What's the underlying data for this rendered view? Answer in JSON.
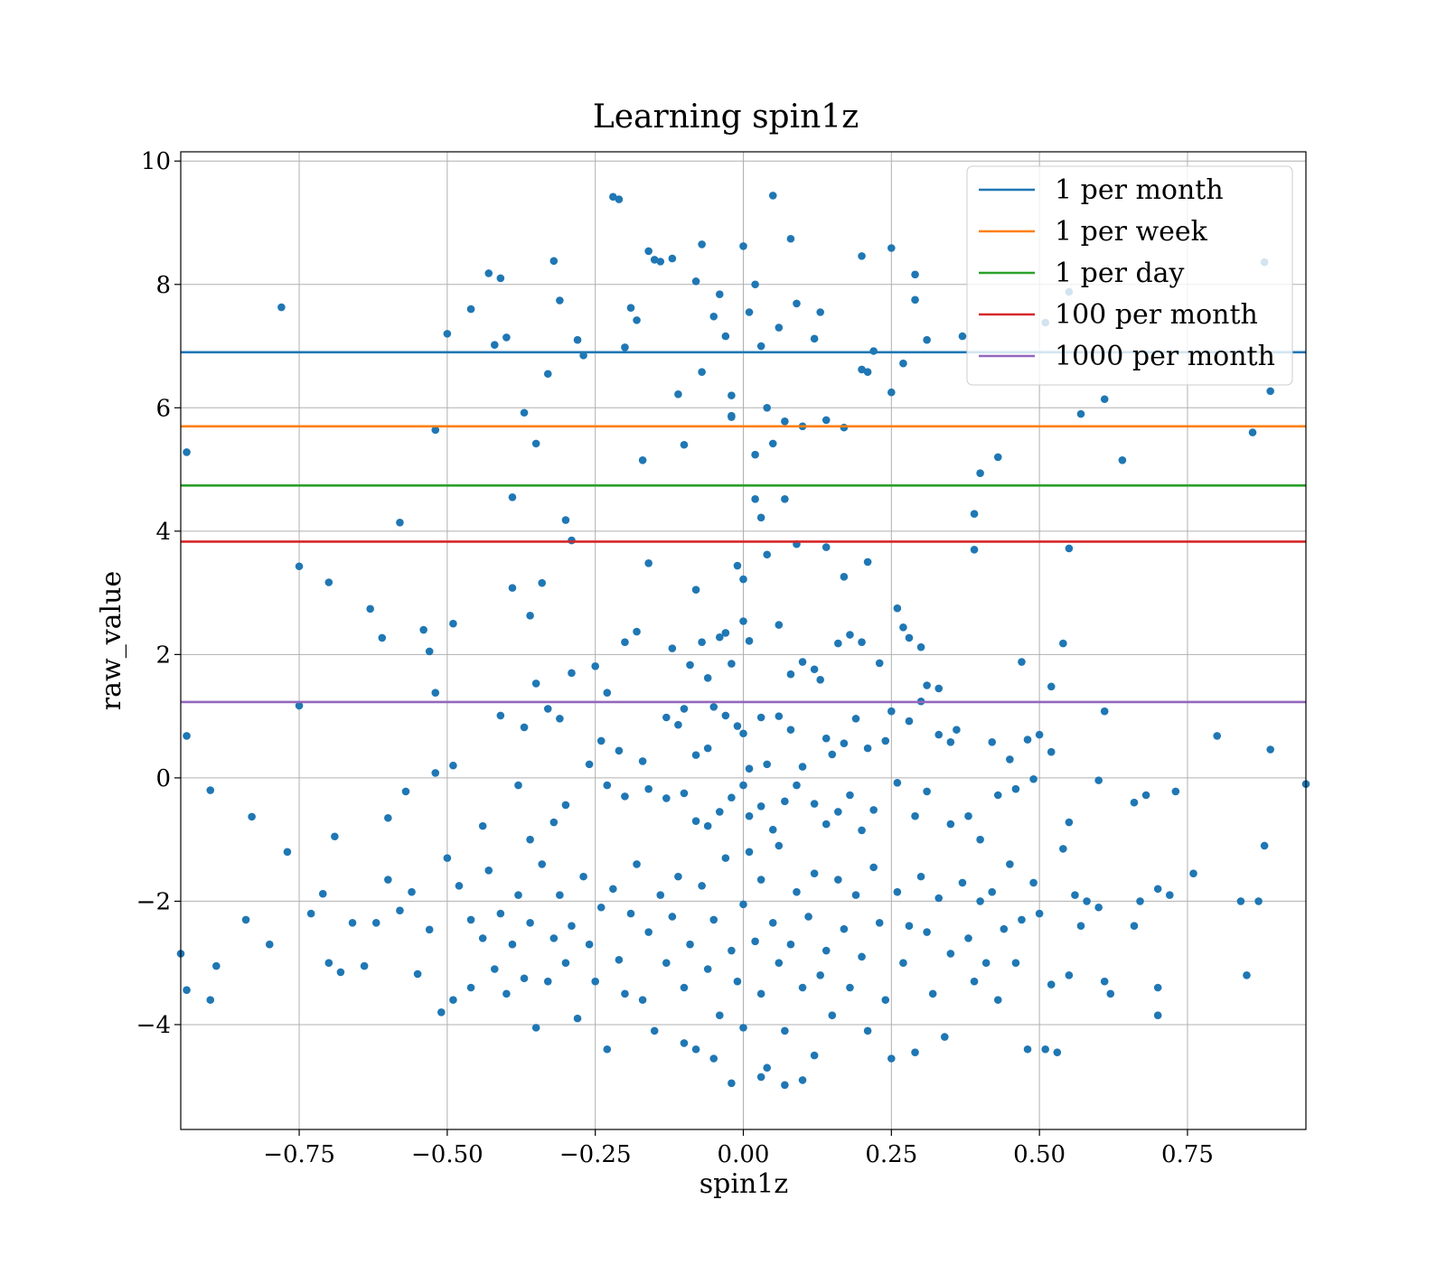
{
  "chart_data": {
    "type": "scatter",
    "title": "Learning spin1z",
    "xlabel": "spin1z",
    "ylabel": "raw_value",
    "xlim": [
      -0.95,
      0.95
    ],
    "ylim": [
      -5.7,
      10.15
    ],
    "xticks": [
      -0.75,
      -0.5,
      -0.25,
      0.0,
      0.25,
      0.5,
      0.75
    ],
    "xtick_labels": [
      "−0.75",
      "−0.50",
      "−0.25",
      "0.00",
      "0.25",
      "0.50",
      "0.75"
    ],
    "yticks": [
      -4,
      -2,
      0,
      2,
      4,
      6,
      8,
      10
    ],
    "ytick_labels": [
      "−4",
      "−2",
      "0",
      "2",
      "4",
      "6",
      "8",
      "10"
    ],
    "grid": true,
    "legend_position": "top-right",
    "point_color": "#1f77b4",
    "thresholds": [
      {
        "name": "1 per month",
        "y": 6.9,
        "color": "#1f77b4"
      },
      {
        "name": "1 per week",
        "y": 5.7,
        "color": "#ff7f0e"
      },
      {
        "name": "1 per day",
        "y": 4.74,
        "color": "#2ca02c"
      },
      {
        "name": "100 per month",
        "y": 3.83,
        "color": "#d62728"
      },
      {
        "name": "1000 per month",
        "y": 1.23,
        "color": "#9467bd"
      }
    ],
    "points": [
      [
        -0.94,
        5.28
      ],
      [
        -0.78,
        7.63
      ],
      [
        -0.75,
        3.43
      ],
      [
        -0.7,
        3.17
      ],
      [
        -0.63,
        2.74
      ],
      [
        -0.61,
        2.27
      ],
      [
        -0.58,
        4.14
      ],
      [
        -0.54,
        2.4
      ],
      [
        -0.53,
        2.05
      ],
      [
        -0.52,
        1.38
      ],
      [
        -0.5,
        7.2
      ],
      [
        -0.49,
        2.5
      ],
      [
        -0.46,
        7.6
      ],
      [
        -0.43,
        8.18
      ],
      [
        -0.42,
        7.02
      ],
      [
        -0.41,
        8.1
      ],
      [
        -0.4,
        7.14
      ],
      [
        -0.39,
        4.55
      ],
      [
        -0.39,
        3.08
      ],
      [
        -0.37,
        5.92
      ],
      [
        -0.35,
        5.42
      ],
      [
        -0.34,
        3.16
      ],
      [
        -0.33,
        6.55
      ],
      [
        -0.32,
        8.38
      ],
      [
        -0.31,
        7.74
      ],
      [
        -0.3,
        4.18
      ],
      [
        -0.29,
        3.85
      ],
      [
        -0.29,
        1.7
      ],
      [
        -0.28,
        7.1
      ],
      [
        -0.27,
        6.85
      ],
      [
        -0.22,
        9.42
      ],
      [
        -0.21,
        9.38
      ],
      [
        -0.2,
        6.98
      ],
      [
        -0.19,
        7.62
      ],
      [
        -0.18,
        7.42
      ],
      [
        -0.17,
        5.15
      ],
      [
        -0.16,
        3.48
      ],
      [
        -0.16,
        8.54
      ],
      [
        -0.15,
        8.4
      ],
      [
        -0.14,
        8.37
      ],
      [
        -0.12,
        8.42
      ],
      [
        -0.11,
        6.22
      ],
      [
        -0.1,
        5.4
      ],
      [
        -0.08,
        8.05
      ],
      [
        -0.07,
        8.65
      ],
      [
        -0.07,
        6.58
      ],
      [
        -0.05,
        7.48
      ],
      [
        -0.04,
        7.84
      ],
      [
        -0.03,
        7.16
      ],
      [
        -0.02,
        6.2
      ],
      [
        -0.02,
        5.87
      ],
      [
        -0.02,
        5.85
      ],
      [
        0.0,
        8.62
      ],
      [
        0.01,
        7.55
      ],
      [
        0.02,
        8.0
      ],
      [
        0.03,
        7.0
      ],
      [
        0.04,
        6.0
      ],
      [
        0.05,
        9.44
      ],
      [
        0.06,
        7.3
      ],
      [
        0.07,
        5.78
      ],
      [
        0.08,
        8.74
      ],
      [
        0.09,
        7.69
      ],
      [
        0.1,
        5.7
      ],
      [
        0.12,
        7.12
      ],
      [
        0.13,
        7.55
      ],
      [
        0.14,
        5.8
      ],
      [
        0.17,
        5.68
      ],
      [
        0.2,
        8.46
      ],
      [
        0.2,
        6.62
      ],
      [
        0.21,
        6.58
      ],
      [
        0.22,
        6.92
      ],
      [
        0.25,
        8.59
      ],
      [
        0.25,
        6.25
      ],
      [
        0.27,
        6.72
      ],
      [
        0.29,
        7.75
      ],
      [
        0.29,
        8.16
      ],
      [
        0.31,
        7.1
      ],
      [
        0.37,
        7.16
      ],
      [
        0.4,
        4.94
      ],
      [
        0.43,
        5.2
      ],
      [
        0.51,
        7.38
      ],
      [
        0.55,
        7.88
      ],
      [
        0.57,
        5.9
      ],
      [
        0.61,
        6.14
      ],
      [
        0.64,
        5.15
      ],
      [
        0.86,
        5.6
      ],
      [
        0.88,
        8.36
      ],
      [
        0.89,
        6.27
      ],
      [
        -0.52,
        5.64
      ],
      [
        -0.36,
        2.63
      ],
      [
        -0.31,
        0.96
      ],
      [
        -0.25,
        1.81
      ],
      [
        -0.23,
        1.38
      ],
      [
        -0.2,
        2.2
      ],
      [
        -0.18,
        2.37
      ],
      [
        -0.12,
        2.1
      ],
      [
        -0.09,
        1.83
      ],
      [
        -0.08,
        3.05
      ],
      [
        -0.07,
        2.2
      ],
      [
        -0.06,
        1.62
      ],
      [
        -0.04,
        2.28
      ],
      [
        -0.03,
        2.35
      ],
      [
        -0.02,
        1.85
      ],
      [
        -0.01,
        3.44
      ],
      [
        0.0,
        2.54
      ],
      [
        0.0,
        3.22
      ],
      [
        0.01,
        2.22
      ],
      [
        0.02,
        4.52
      ],
      [
        0.02,
        5.24
      ],
      [
        0.03,
        4.22
      ],
      [
        0.04,
        3.62
      ],
      [
        0.05,
        5.42
      ],
      [
        0.06,
        2.48
      ],
      [
        0.07,
        4.52
      ],
      [
        0.08,
        1.68
      ],
      [
        0.09,
        3.79
      ],
      [
        0.1,
        1.88
      ],
      [
        0.12,
        1.76
      ],
      [
        0.13,
        1.59
      ],
      [
        0.14,
        3.74
      ],
      [
        0.16,
        2.18
      ],
      [
        0.17,
        3.26
      ],
      [
        0.18,
        2.32
      ],
      [
        0.2,
        2.2
      ],
      [
        0.21,
        3.5
      ],
      [
        0.23,
        1.86
      ],
      [
        0.26,
        2.75
      ],
      [
        0.27,
        2.44
      ],
      [
        0.28,
        2.27
      ],
      [
        0.3,
        2.12
      ],
      [
        0.31,
        1.5
      ],
      [
        0.33,
        1.45
      ],
      [
        0.39,
        4.28
      ],
      [
        0.39,
        3.7
      ],
      [
        0.47,
        1.88
      ],
      [
        0.52,
        1.48
      ],
      [
        0.54,
        2.18
      ],
      [
        0.55,
        3.72
      ],
      [
        -0.94,
        0.68
      ],
      [
        -0.75,
        1.17
      ],
      [
        -0.41,
        1.01
      ],
      [
        -0.37,
        0.82
      ],
      [
        -0.35,
        1.53
      ],
      [
        -0.33,
        1.12
      ],
      [
        -0.24,
        0.6
      ],
      [
        -0.21,
        0.44
      ],
      [
        -0.17,
        0.27
      ],
      [
        -0.13,
        0.98
      ],
      [
        -0.11,
        0.86
      ],
      [
        -0.1,
        1.12
      ],
      [
        -0.08,
        0.37
      ],
      [
        -0.06,
        0.48
      ],
      [
        -0.05,
        1.15
      ],
      [
        -0.03,
        1.01
      ],
      [
        -0.01,
        0.84
      ],
      [
        0.0,
        0.72
      ],
      [
        0.01,
        0.15
      ],
      [
        0.03,
        0.98
      ],
      [
        0.04,
        0.22
      ],
      [
        0.06,
        1.0
      ],
      [
        0.08,
        0.78
      ],
      [
        0.1,
        0.18
      ],
      [
        0.14,
        0.64
      ],
      [
        0.15,
        0.38
      ],
      [
        0.17,
        0.56
      ],
      [
        0.19,
        0.96
      ],
      [
        0.21,
        0.48
      ],
      [
        0.24,
        0.6
      ],
      [
        0.25,
        1.08
      ],
      [
        0.28,
        0.92
      ],
      [
        0.3,
        1.24
      ],
      [
        0.33,
        0.7
      ],
      [
        0.35,
        0.58
      ],
      [
        0.36,
        0.78
      ],
      [
        0.42,
        0.58
      ],
      [
        0.45,
        0.3
      ],
      [
        0.48,
        0.62
      ],
      [
        0.5,
        0.7
      ],
      [
        0.52,
        0.42
      ],
      [
        0.61,
        1.08
      ],
      [
        0.8,
        0.68
      ],
      [
        0.89,
        0.46
      ],
      [
        -0.9,
        -0.2
      ],
      [
        -0.83,
        -0.63
      ],
      [
        -0.77,
        -1.2
      ],
      [
        -0.69,
        -0.95
      ],
      [
        -0.6,
        -0.65
      ],
      [
        -0.57,
        -0.22
      ],
      [
        -0.52,
        0.08
      ],
      [
        -0.49,
        0.2
      ],
      [
        -0.44,
        -0.78
      ],
      [
        -0.38,
        -0.12
      ],
      [
        -0.36,
        -1.0
      ],
      [
        -0.32,
        -0.72
      ],
      [
        -0.3,
        -0.44
      ],
      [
        -0.26,
        0.22
      ],
      [
        -0.23,
        -0.12
      ],
      [
        -0.2,
        -0.3
      ],
      [
        -0.16,
        -0.18
      ],
      [
        -0.13,
        -0.33
      ],
      [
        -0.1,
        -0.25
      ],
      [
        -0.08,
        -0.7
      ],
      [
        -0.06,
        -0.78
      ],
      [
        -0.04,
        -0.55
      ],
      [
        -0.02,
        -0.32
      ],
      [
        0.0,
        -0.12
      ],
      [
        0.01,
        -0.62
      ],
      [
        0.03,
        -0.46
      ],
      [
        0.05,
        -0.84
      ],
      [
        0.07,
        -0.38
      ],
      [
        0.09,
        -0.12
      ],
      [
        0.12,
        -0.42
      ],
      [
        0.14,
        -0.75
      ],
      [
        0.16,
        -0.55
      ],
      [
        0.18,
        -0.28
      ],
      [
        0.2,
        -0.85
      ],
      [
        0.22,
        -0.52
      ],
      [
        0.26,
        -0.08
      ],
      [
        0.29,
        -0.62
      ],
      [
        0.31,
        -0.22
      ],
      [
        0.35,
        -0.75
      ],
      [
        0.38,
        -0.62
      ],
      [
        0.4,
        -1.0
      ],
      [
        0.43,
        -0.28
      ],
      [
        0.46,
        -0.18
      ],
      [
        0.49,
        -0.02
      ],
      [
        0.55,
        -0.72
      ],
      [
        0.6,
        -0.04
      ],
      [
        0.66,
        -0.4
      ],
      [
        0.68,
        -0.28
      ],
      [
        0.73,
        -0.22
      ],
      [
        0.95,
        -0.1
      ],
      [
        -0.95,
        -2.85
      ],
      [
        -0.94,
        -3.44
      ],
      [
        -0.9,
        -3.6
      ],
      [
        -0.89,
        -3.05
      ],
      [
        -0.84,
        -2.3
      ],
      [
        -0.8,
        -2.7
      ],
      [
        -0.73,
        -2.2
      ],
      [
        -0.71,
        -1.88
      ],
      [
        -0.7,
        -3.0
      ],
      [
        -0.68,
        -3.15
      ],
      [
        -0.66,
        -2.35
      ],
      [
        -0.64,
        -3.05
      ],
      [
        -0.62,
        -2.35
      ],
      [
        -0.6,
        -1.65
      ],
      [
        -0.58,
        -2.15
      ],
      [
        -0.56,
        -1.85
      ],
      [
        -0.55,
        -3.18
      ],
      [
        -0.53,
        -2.46
      ],
      [
        -0.51,
        -3.8
      ],
      [
        -0.5,
        -1.3
      ],
      [
        -0.49,
        -3.6
      ],
      [
        -0.48,
        -1.75
      ],
      [
        -0.46,
        -2.3
      ],
      [
        -0.46,
        -3.4
      ],
      [
        -0.44,
        -2.6
      ],
      [
        -0.43,
        -1.5
      ],
      [
        -0.42,
        -3.1
      ],
      [
        -0.41,
        -2.2
      ],
      [
        -0.4,
        -3.5
      ],
      [
        -0.39,
        -2.7
      ],
      [
        -0.38,
        -1.9
      ],
      [
        -0.37,
        -3.25
      ],
      [
        -0.36,
        -2.35
      ],
      [
        -0.35,
        -4.05
      ],
      [
        -0.34,
        -1.4
      ],
      [
        -0.33,
        -3.3
      ],
      [
        -0.32,
        -2.6
      ],
      [
        -0.31,
        -1.9
      ],
      [
        -0.3,
        -3.0
      ],
      [
        -0.29,
        -2.4
      ],
      [
        -0.28,
        -3.9
      ],
      [
        -0.27,
        -1.6
      ],
      [
        -0.26,
        -2.7
      ],
      [
        -0.25,
        -3.3
      ],
      [
        -0.24,
        -2.1
      ],
      [
        -0.23,
        -4.4
      ],
      [
        -0.22,
        -1.8
      ],
      [
        -0.21,
        -2.95
      ],
      [
        -0.2,
        -3.5
      ],
      [
        -0.19,
        -2.2
      ],
      [
        -0.18,
        -1.4
      ],
      [
        -0.17,
        -3.6
      ],
      [
        -0.16,
        -2.5
      ],
      [
        -0.15,
        -4.1
      ],
      [
        -0.14,
        -1.9
      ],
      [
        -0.13,
        -3.0
      ],
      [
        -0.12,
        -2.25
      ],
      [
        -0.11,
        -1.6
      ],
      [
        -0.1,
        -3.4
      ],
      [
        -0.09,
        -2.7
      ],
      [
        -0.08,
        -4.4
      ],
      [
        -0.07,
        -1.75
      ],
      [
        -0.06,
        -3.1
      ],
      [
        -0.05,
        -2.3
      ],
      [
        -0.04,
        -3.85
      ],
      [
        -0.03,
        -1.3
      ],
      [
        -0.02,
        -2.8
      ],
      [
        -0.01,
        -3.3
      ],
      [
        0.0,
        -2.05
      ],
      [
        0.0,
        -4.05
      ],
      [
        0.01,
        -1.2
      ],
      [
        0.02,
        -2.65
      ],
      [
        0.03,
        -3.5
      ],
      [
        0.03,
        -1.65
      ],
      [
        0.04,
        -4.7
      ],
      [
        0.05,
        -2.35
      ],
      [
        0.06,
        -3.0
      ],
      [
        0.06,
        -1.1
      ],
      [
        0.07,
        -4.1
      ],
      [
        0.08,
        -2.7
      ],
      [
        0.09,
        -1.85
      ],
      [
        0.1,
        -3.4
      ],
      [
        0.1,
        -4.9
      ],
      [
        0.11,
        -2.25
      ],
      [
        0.12,
        -1.55
      ],
      [
        0.13,
        -3.2
      ],
      [
        0.14,
        -2.8
      ],
      [
        0.15,
        -3.85
      ],
      [
        0.16,
        -1.65
      ],
      [
        0.17,
        -2.45
      ],
      [
        0.18,
        -3.4
      ],
      [
        0.19,
        -1.9
      ],
      [
        0.2,
        -2.9
      ],
      [
        0.21,
        -4.1
      ],
      [
        0.22,
        -1.45
      ],
      [
        0.23,
        -2.35
      ],
      [
        0.24,
        -3.6
      ],
      [
        0.25,
        -4.55
      ],
      [
        0.26,
        -1.85
      ],
      [
        0.27,
        -3.0
      ],
      [
        0.28,
        -2.4
      ],
      [
        0.29,
        -4.45
      ],
      [
        0.3,
        -1.6
      ],
      [
        0.31,
        -2.5
      ],
      [
        0.32,
        -3.5
      ],
      [
        0.33,
        -1.95
      ],
      [
        0.34,
        -4.2
      ],
      [
        0.35,
        -2.85
      ],
      [
        0.37,
        -1.7
      ],
      [
        0.38,
        -2.6
      ],
      [
        0.39,
        -3.3
      ],
      [
        0.4,
        -2.0
      ],
      [
        0.41,
        -3.0
      ],
      [
        0.42,
        -1.85
      ],
      [
        0.43,
        -3.6
      ],
      [
        0.44,
        -2.45
      ],
      [
        0.45,
        -1.4
      ],
      [
        0.46,
        -3.0
      ],
      [
        0.47,
        -2.3
      ],
      [
        0.48,
        -4.4
      ],
      [
        0.49,
        -1.7
      ],
      [
        0.5,
        -2.2
      ],
      [
        0.51,
        -4.4
      ],
      [
        0.52,
        -3.35
      ],
      [
        0.53,
        -4.45
      ],
      [
        0.54,
        -1.15
      ],
      [
        0.55,
        -3.2
      ],
      [
        0.56,
        -1.9
      ],
      [
        0.57,
        -2.4
      ],
      [
        0.58,
        -2.0
      ],
      [
        0.6,
        -2.1
      ],
      [
        0.61,
        -3.3
      ],
      [
        0.62,
        -3.5
      ],
      [
        0.66,
        -2.4
      ],
      [
        0.67,
        -2.0
      ],
      [
        0.7,
        -1.8
      ],
      [
        0.7,
        -3.4
      ],
      [
        0.7,
        -3.85
      ],
      [
        0.72,
        -1.9
      ],
      [
        0.76,
        -1.55
      ],
      [
        0.84,
        -2.0
      ],
      [
        0.85,
        -3.2
      ],
      [
        0.87,
        -2.0
      ],
      [
        0.88,
        -1.1
      ],
      [
        -0.05,
        -4.55
      ],
      [
        -0.02,
        -4.95
      ],
      [
        0.03,
        -4.85
      ],
      [
        0.07,
        -4.98
      ],
      [
        -0.1,
        -4.3
      ],
      [
        0.12,
        -4.5
      ]
    ]
  }
}
